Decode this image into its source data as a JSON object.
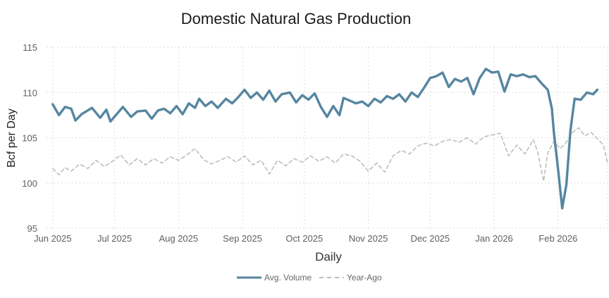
{
  "chart_data": {
    "type": "line",
    "title": "Domestic Natural Gas Production",
    "xlabel": "Daily",
    "ylabel": "Bcf per Day",
    "ylim": [
      95,
      115
    ],
    "yticks": [
      95,
      100,
      105,
      110,
      115
    ],
    "x_tick_labels": [
      "Jun 2025",
      "Jul 2025",
      "Aug 2025",
      "Sep 2025",
      "Oct 2025",
      "Nov 2025",
      "Dec 2025",
      "Jan 2026",
      "Feb 2026"
    ],
    "xlim": [
      "2025-05-29",
      "2026-02-25"
    ],
    "grid": true,
    "legend_position": "bottom-center",
    "series": [
      {
        "name": "Avg. Volume",
        "color": "#5686a0",
        "style": "solid",
        "points": [
          [
            "2025-06-01",
            108.7
          ],
          [
            "2025-06-04",
            107.5
          ],
          [
            "2025-06-07",
            108.4
          ],
          [
            "2025-06-10",
            108.2
          ],
          [
            "2025-06-12",
            106.9
          ],
          [
            "2025-06-15",
            107.6
          ],
          [
            "2025-06-20",
            108.3
          ],
          [
            "2025-06-24",
            107.2
          ],
          [
            "2025-06-27",
            108.1
          ],
          [
            "2025-06-29",
            106.8
          ],
          [
            "2025-07-02",
            107.6
          ],
          [
            "2025-07-05",
            108.4
          ],
          [
            "2025-07-09",
            107.3
          ],
          [
            "2025-07-12",
            107.9
          ],
          [
            "2025-07-16",
            108.0
          ],
          [
            "2025-07-19",
            107.1
          ],
          [
            "2025-07-22",
            108.0
          ],
          [
            "2025-07-25",
            108.2
          ],
          [
            "2025-07-28",
            107.7
          ],
          [
            "2025-07-31",
            108.5
          ],
          [
            "2025-08-03",
            107.6
          ],
          [
            "2025-08-06",
            108.8
          ],
          [
            "2025-08-09",
            108.3
          ],
          [
            "2025-08-11",
            109.3
          ],
          [
            "2025-08-14",
            108.5
          ],
          [
            "2025-08-17",
            109.0
          ],
          [
            "2025-08-20",
            108.3
          ],
          [
            "2025-08-24",
            109.3
          ],
          [
            "2025-08-27",
            108.8
          ],
          [
            "2025-08-30",
            109.5
          ],
          [
            "2025-09-02",
            110.3
          ],
          [
            "2025-09-05",
            109.4
          ],
          [
            "2025-09-08",
            110.0
          ],
          [
            "2025-09-11",
            109.2
          ],
          [
            "2025-09-14",
            110.2
          ],
          [
            "2025-09-17",
            109.0
          ],
          [
            "2025-09-20",
            109.8
          ],
          [
            "2025-09-24",
            110.0
          ],
          [
            "2025-09-27",
            108.9
          ],
          [
            "2025-09-30",
            109.7
          ],
          [
            "2025-10-03",
            109.2
          ],
          [
            "2025-10-06",
            109.9
          ],
          [
            "2025-10-09",
            108.4
          ],
          [
            "2025-10-12",
            107.3
          ],
          [
            "2025-10-15",
            108.5
          ],
          [
            "2025-10-18",
            107.5
          ],
          [
            "2025-10-20",
            109.4
          ],
          [
            "2025-10-23",
            109.1
          ],
          [
            "2025-10-26",
            108.8
          ],
          [
            "2025-10-29",
            109.0
          ],
          [
            "2025-11-01",
            108.5
          ],
          [
            "2025-11-04",
            109.3
          ],
          [
            "2025-11-07",
            108.9
          ],
          [
            "2025-11-10",
            109.6
          ],
          [
            "2025-11-13",
            109.3
          ],
          [
            "2025-11-16",
            109.8
          ],
          [
            "2025-11-19",
            109.0
          ],
          [
            "2025-11-22",
            110.0
          ],
          [
            "2025-11-25",
            109.5
          ],
          [
            "2025-11-28",
            110.5
          ],
          [
            "2025-12-01",
            111.6
          ],
          [
            "2025-12-04",
            111.8
          ],
          [
            "2025-12-07",
            112.2
          ],
          [
            "2025-12-10",
            110.6
          ],
          [
            "2025-12-13",
            111.5
          ],
          [
            "2025-12-16",
            111.2
          ],
          [
            "2025-12-19",
            111.6
          ],
          [
            "2025-12-22",
            109.8
          ],
          [
            "2025-12-25",
            111.6
          ],
          [
            "2025-12-28",
            112.6
          ],
          [
            "2025-12-31",
            112.2
          ],
          [
            "2026-01-03",
            112.3
          ],
          [
            "2026-01-06",
            110.1
          ],
          [
            "2026-01-09",
            112.0
          ],
          [
            "2026-01-12",
            111.8
          ],
          [
            "2026-01-15",
            112.0
          ],
          [
            "2026-01-18",
            111.7
          ],
          [
            "2026-01-21",
            111.8
          ],
          [
            "2026-01-24",
            111.0
          ],
          [
            "2026-01-27",
            110.3
          ],
          [
            "2026-01-29",
            108.2
          ],
          [
            "2026-01-30",
            105.5
          ],
          [
            "2026-02-01",
            101.5
          ],
          [
            "2026-02-03",
            97.2
          ],
          [
            "2026-02-05",
            99.8
          ],
          [
            "2026-02-07",
            105.8
          ],
          [
            "2026-02-09",
            109.3
          ],
          [
            "2026-02-12",
            109.2
          ],
          [
            "2026-02-15",
            110.0
          ],
          [
            "2026-02-18",
            109.8
          ],
          [
            "2026-02-20",
            110.3
          ]
        ]
      },
      {
        "name": "Year-Ago",
        "color": "#bdbdbd",
        "style": "dashed",
        "points": [
          [
            "2025-06-01",
            101.6
          ],
          [
            "2025-06-04",
            100.9
          ],
          [
            "2025-06-07",
            101.7
          ],
          [
            "2025-06-10",
            101.3
          ],
          [
            "2025-06-14",
            102.1
          ],
          [
            "2025-06-18",
            101.6
          ],
          [
            "2025-06-22",
            102.5
          ],
          [
            "2025-06-26",
            101.8
          ],
          [
            "2025-06-30",
            102.4
          ],
          [
            "2025-07-04",
            103.1
          ],
          [
            "2025-07-08",
            102.0
          ],
          [
            "2025-07-12",
            102.7
          ],
          [
            "2025-07-16",
            102.0
          ],
          [
            "2025-07-20",
            102.7
          ],
          [
            "2025-07-24",
            102.2
          ],
          [
            "2025-07-28",
            102.9
          ],
          [
            "2025-08-01",
            102.5
          ],
          [
            "2025-08-05",
            103.1
          ],
          [
            "2025-08-09",
            103.8
          ],
          [
            "2025-08-13",
            102.6
          ],
          [
            "2025-08-17",
            102.1
          ],
          [
            "2025-08-21",
            102.5
          ],
          [
            "2025-08-25",
            102.9
          ],
          [
            "2025-08-29",
            102.3
          ],
          [
            "2025-09-02",
            103.0
          ],
          [
            "2025-09-06",
            102.0
          ],
          [
            "2025-09-10",
            102.5
          ],
          [
            "2025-09-14",
            101.0
          ],
          [
            "2025-09-18",
            102.5
          ],
          [
            "2025-09-22",
            101.9
          ],
          [
            "2025-09-26",
            102.7
          ],
          [
            "2025-09-30",
            102.3
          ],
          [
            "2025-10-04",
            103.0
          ],
          [
            "2025-10-08",
            102.4
          ],
          [
            "2025-10-12",
            102.9
          ],
          [
            "2025-10-16",
            102.2
          ],
          [
            "2025-10-20",
            103.2
          ],
          [
            "2025-10-24",
            103.0
          ],
          [
            "2025-10-28",
            102.4
          ],
          [
            "2025-11-01",
            101.3
          ],
          [
            "2025-11-05",
            102.2
          ],
          [
            "2025-11-09",
            101.2
          ],
          [
            "2025-11-13",
            103.0
          ],
          [
            "2025-11-17",
            103.6
          ],
          [
            "2025-11-21",
            103.2
          ],
          [
            "2025-11-25",
            104.1
          ],
          [
            "2025-11-29",
            104.4
          ],
          [
            "2025-12-03",
            104.1
          ],
          [
            "2025-12-07",
            104.6
          ],
          [
            "2025-12-11",
            104.8
          ],
          [
            "2025-12-15",
            104.5
          ],
          [
            "2025-12-19",
            105.0
          ],
          [
            "2025-12-23",
            104.3
          ],
          [
            "2025-12-27",
            105.1
          ],
          [
            "2025-12-31",
            105.3
          ],
          [
            "2026-01-04",
            105.5
          ],
          [
            "2026-01-08",
            103.0
          ],
          [
            "2026-01-12",
            104.2
          ],
          [
            "2026-01-16",
            103.2
          ],
          [
            "2026-01-20",
            104.8
          ],
          [
            "2026-01-22",
            103.5
          ],
          [
            "2026-01-25",
            100.2
          ],
          [
            "2026-01-27",
            103.3
          ],
          [
            "2026-01-30",
            104.6
          ],
          [
            "2026-02-02",
            103.8
          ],
          [
            "2026-02-05",
            104.5
          ],
          [
            "2026-02-08",
            105.6
          ],
          [
            "2026-02-11",
            106.1
          ],
          [
            "2026-02-14",
            105.2
          ],
          [
            "2026-02-17",
            105.6
          ],
          [
            "2026-02-20",
            104.9
          ],
          [
            "2026-02-23",
            104.2
          ],
          [
            "2026-02-25",
            102.2
          ]
        ]
      }
    ]
  },
  "legend": {
    "items": [
      {
        "label": "Avg. Volume",
        "color": "#5686a0",
        "style": "solid"
      },
      {
        "label": "Year-Ago",
        "color": "#bdbdbd",
        "style": "dashed"
      }
    ]
  }
}
